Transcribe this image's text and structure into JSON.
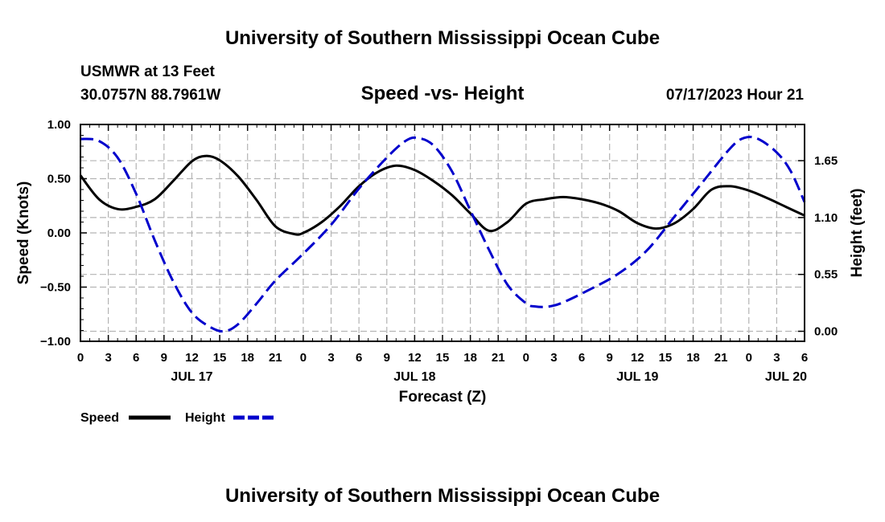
{
  "header": {
    "title": "University of Southern Mississippi Ocean Cube",
    "station_line": "USMWR at 13 Feet",
    "coords": "30.0757N  88.7961W",
    "datetime": "07/17/2023 Hour 21",
    "footer_title": "University of Southern Mississippi Ocean Cube"
  },
  "colors": {
    "speed": "#000000",
    "height": "#0000cc",
    "grid": "#b4b4b4"
  },
  "chart_data": {
    "type": "line",
    "title": "Speed -vs- Height",
    "xlabel": "Forecast (Z)",
    "ylabel_left": "Speed (Knots)",
    "ylabel_right": "Height (feet)",
    "x_unit": "hours since JUL 17 00Z",
    "xlim": [
      0,
      78
    ],
    "ylim_left": [
      -1.0,
      1.0
    ],
    "ylim_right": [
      -0.097,
      2.0
    ],
    "x_tick_hours": [
      0,
      3,
      6,
      9,
      12,
      15,
      18,
      21,
      24,
      27,
      30,
      33,
      36,
      39,
      42,
      45,
      48,
      51,
      54,
      57,
      60,
      63,
      66,
      69,
      72,
      75,
      78
    ],
    "x_tick_labels": [
      "0",
      "3",
      "6",
      "9",
      "12",
      "15",
      "18",
      "21",
      "0",
      "3",
      "6",
      "9",
      "12",
      "15",
      "18",
      "21",
      "0",
      "3",
      "6",
      "9",
      "12",
      "15",
      "18",
      "21",
      "0",
      "3",
      "6"
    ],
    "date_labels": [
      {
        "hour": 12,
        "label": "JUL 17"
      },
      {
        "hour": 36,
        "label": "JUL 18"
      },
      {
        "hour": 60,
        "label": "JUL 19"
      },
      {
        "hour": 76,
        "label": "JUL 20"
      }
    ],
    "y_left_ticks": [
      1.0,
      0.5,
      0.0,
      -0.5,
      -1.0
    ],
    "y_left_tick_labels": [
      "1.00",
      "0.50",
      "0.00",
      "−0.50",
      "−1.00"
    ],
    "y_right_ticks": [
      1.65,
      1.1,
      0.55,
      0.0
    ],
    "y_right_tick_labels": [
      "1.65",
      "1.10",
      "0.55",
      "0.00"
    ],
    "series": [
      {
        "name": "Speed",
        "axis": "left",
        "style": "solid",
        "x": [
          0,
          2,
          4,
          6,
          8,
          10,
          12,
          13.5,
          15,
          17,
          19,
          21,
          23,
          24,
          26,
          28,
          30,
          32,
          34,
          36,
          38,
          40,
          42,
          44,
          46,
          48,
          50,
          52,
          54,
          56,
          58,
          60,
          62,
          64,
          66,
          68,
          70,
          72,
          74,
          76,
          78
        ],
        "values": [
          0.53,
          0.31,
          0.22,
          0.24,
          0.31,
          0.48,
          0.66,
          0.71,
          0.67,
          0.52,
          0.3,
          0.06,
          -0.01,
          0.0,
          0.1,
          0.25,
          0.43,
          0.56,
          0.62,
          0.58,
          0.48,
          0.35,
          0.18,
          0.02,
          0.1,
          0.27,
          0.31,
          0.33,
          0.31,
          0.27,
          0.2,
          0.09,
          0.04,
          0.09,
          0.22,
          0.4,
          0.43,
          0.39,
          0.32,
          0.24,
          0.16
        ]
      },
      {
        "name": "Height",
        "axis": "right",
        "style": "dashed",
        "x": [
          0,
          2,
          4,
          6,
          8,
          10,
          12,
          14,
          15.5,
          17,
          19,
          21,
          24,
          27,
          30,
          33,
          35,
          36.3,
          38,
          40,
          42,
          44,
          46,
          48,
          49,
          50.5,
          52,
          55,
          58,
          61,
          64,
          67,
          70,
          71.5,
          73,
          75,
          76.5,
          78
        ],
        "values": [
          1.86,
          1.84,
          1.68,
          1.33,
          0.88,
          0.48,
          0.18,
          0.04,
          0.0,
          0.07,
          0.27,
          0.49,
          0.75,
          1.03,
          1.38,
          1.68,
          1.84,
          1.87,
          1.8,
          1.55,
          1.17,
          0.79,
          0.45,
          0.27,
          0.24,
          0.24,
          0.28,
          0.41,
          0.56,
          0.78,
          1.11,
          1.44,
          1.77,
          1.87,
          1.86,
          1.73,
          1.55,
          1.25
        ]
      }
    ],
    "legend": [
      {
        "label": "Speed",
        "series": "Speed"
      },
      {
        "label": "Height",
        "series": "Height"
      }
    ],
    "legend_position": "bottom-left",
    "grid": true
  }
}
